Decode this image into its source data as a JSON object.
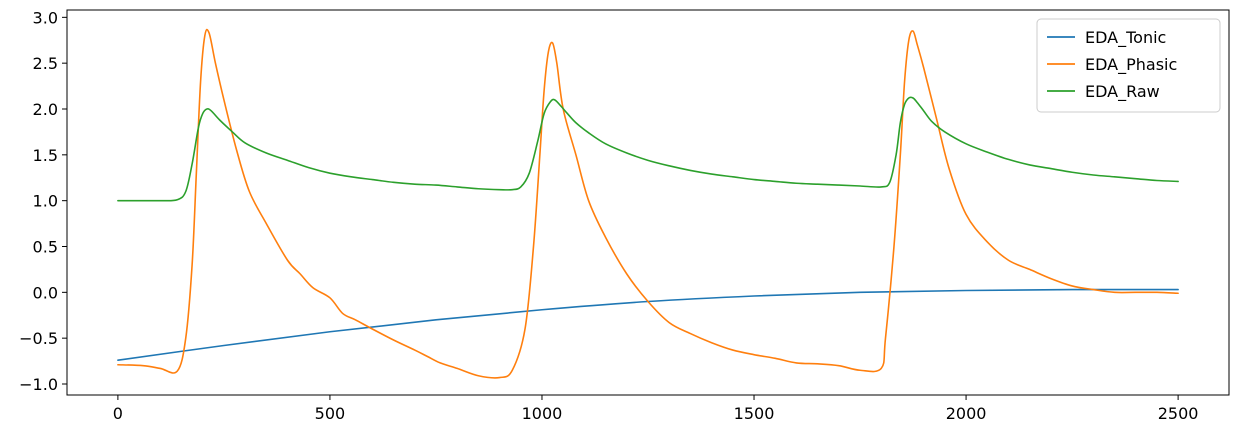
{
  "chart_data": {
    "type": "line",
    "title": "",
    "xlabel": "",
    "ylabel": "",
    "xlim": [
      -120,
      2620
    ],
    "ylim": [
      -1.12,
      3.08
    ],
    "x_ticks": [
      0,
      500,
      1000,
      1500,
      2000,
      2500
    ],
    "x_tick_labels": [
      "0",
      "500",
      "1000",
      "1500",
      "2000",
      "2500"
    ],
    "y_ticks": [
      -1.0,
      -0.5,
      0.0,
      0.5,
      1.0,
      1.5,
      2.0,
      2.5,
      3.0
    ],
    "y_tick_labels": [
      "−1.0",
      "−0.5",
      "0.0",
      "0.5",
      "1.0",
      "1.5",
      "2.0",
      "2.5",
      "3.0"
    ],
    "grid": false,
    "legend_position": "top-right",
    "series": [
      {
        "name": "EDA_Tonic",
        "color": "#1f77b4",
        "x": [
          0,
          250,
          500,
          750,
          1000,
          1250,
          1500,
          1750,
          2000,
          2250,
          2500
        ],
        "y": [
          -0.74,
          -0.58,
          -0.43,
          -0.3,
          -0.19,
          -0.1,
          -0.04,
          0.0,
          0.02,
          0.03,
          0.03
        ]
      },
      {
        "name": "EDA_Phasic",
        "color": "#ff7f0e",
        "x": [
          0,
          60,
          100,
          140,
          160,
          175,
          185,
          195,
          205,
          215,
          230,
          250,
          280,
          310,
          350,
          400,
          430,
          460,
          500,
          530,
          560,
          600,
          650,
          700,
          730,
          760,
          800,
          850,
          900,
          930,
          960,
          980,
          995,
          1005,
          1015,
          1025,
          1035,
          1050,
          1080,
          1110,
          1150,
          1200,
          1250,
          1300,
          1350,
          1400,
          1450,
          1500,
          1550,
          1600,
          1650,
          1700,
          1750,
          1800,
          1810,
          1830,
          1845,
          1855,
          1865,
          1875,
          1885,
          1900,
          1930,
          1960,
          2000,
          2050,
          2100,
          2150,
          2200,
          2250,
          2300,
          2350,
          2400,
          2450,
          2500
        ],
        "y": [
          -0.79,
          -0.8,
          -0.83,
          -0.86,
          -0.5,
          0.3,
          1.3,
          2.3,
          2.8,
          2.83,
          2.5,
          2.1,
          1.55,
          1.1,
          0.75,
          0.35,
          0.2,
          0.05,
          -0.06,
          -0.23,
          -0.3,
          -0.4,
          -0.52,
          -0.63,
          -0.7,
          -0.77,
          -0.83,
          -0.91,
          -0.93,
          -0.85,
          -0.4,
          0.5,
          1.5,
          2.2,
          2.62,
          2.72,
          2.5,
          2.0,
          1.5,
          1.0,
          0.6,
          0.2,
          -0.1,
          -0.33,
          -0.45,
          -0.55,
          -0.63,
          -0.68,
          -0.72,
          -0.77,
          -0.78,
          -0.8,
          -0.85,
          -0.83,
          -0.5,
          0.5,
          1.5,
          2.3,
          2.75,
          2.85,
          2.7,
          2.45,
          1.9,
          1.35,
          0.85,
          0.55,
          0.35,
          0.25,
          0.15,
          0.07,
          0.03,
          0.0,
          0.0,
          0.0,
          -0.01
        ]
      },
      {
        "name": "EDA_Raw",
        "color": "#2ca02c",
        "x": [
          0,
          50,
          100,
          140,
          160,
          175,
          190,
          200,
          210,
          220,
          240,
          270,
          300,
          350,
          400,
          450,
          500,
          550,
          600,
          650,
          700,
          750,
          800,
          850,
          900,
          930,
          950,
          970,
          990,
          1005,
          1020,
          1030,
          1045,
          1060,
          1080,
          1110,
          1150,
          1200,
          1250,
          1300,
          1350,
          1400,
          1450,
          1500,
          1550,
          1600,
          1650,
          1700,
          1750,
          1800,
          1820,
          1835,
          1845,
          1855,
          1865,
          1875,
          1885,
          1900,
          1920,
          1950,
          2000,
          2050,
          2100,
          2150,
          2200,
          2250,
          2300,
          2350,
          2400,
          2450,
          2500
        ],
        "y": [
          1.0,
          1.0,
          1.0,
          1.01,
          1.1,
          1.4,
          1.8,
          1.95,
          2.0,
          1.98,
          1.88,
          1.75,
          1.63,
          1.52,
          1.44,
          1.36,
          1.3,
          1.26,
          1.23,
          1.2,
          1.18,
          1.17,
          1.15,
          1.13,
          1.12,
          1.12,
          1.15,
          1.3,
          1.65,
          1.95,
          2.08,
          2.1,
          2.03,
          1.95,
          1.85,
          1.74,
          1.62,
          1.52,
          1.44,
          1.38,
          1.33,
          1.29,
          1.26,
          1.23,
          1.21,
          1.19,
          1.18,
          1.17,
          1.16,
          1.15,
          1.2,
          1.5,
          1.85,
          2.05,
          2.12,
          2.12,
          2.07,
          1.98,
          1.86,
          1.75,
          1.62,
          1.53,
          1.45,
          1.39,
          1.35,
          1.31,
          1.28,
          1.26,
          1.24,
          1.22,
          1.21
        ]
      }
    ]
  }
}
